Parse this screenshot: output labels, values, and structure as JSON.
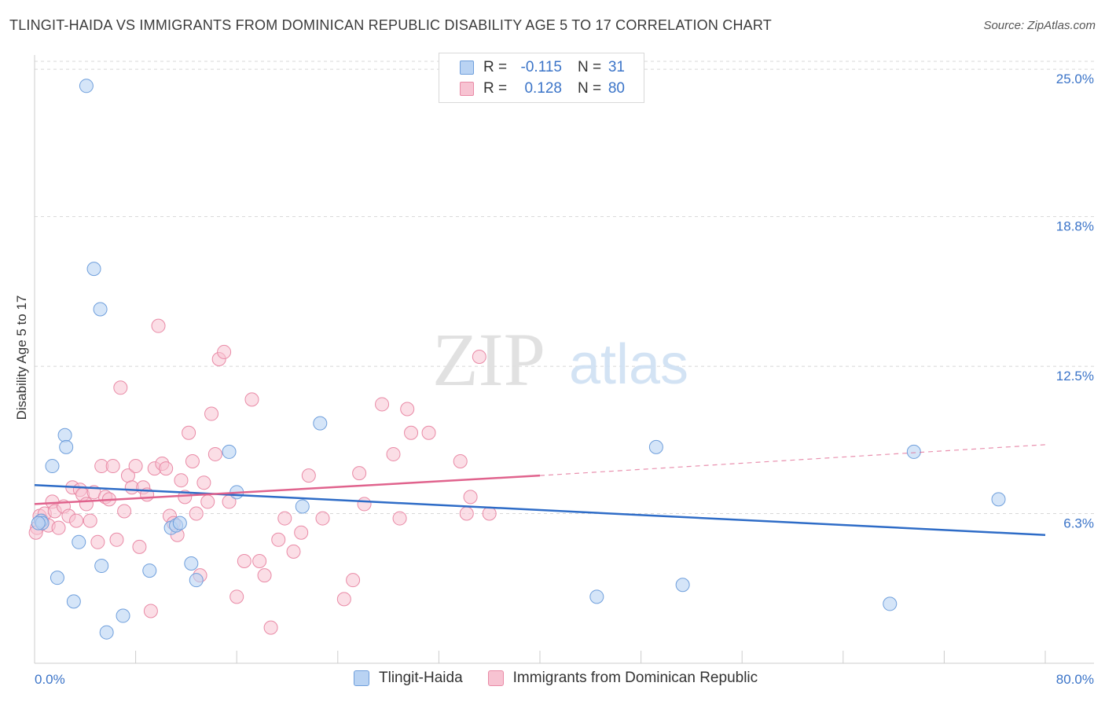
{
  "header": {
    "title": "TLINGIT-HAIDA VS IMMIGRANTS FROM DOMINICAN REPUBLIC DISABILITY AGE 5 TO 17 CORRELATION CHART",
    "source": "Source: ZipAtlas.com"
  },
  "watermark": {
    "zip": "ZIP",
    "atlas": "atlas"
  },
  "legend_top": {
    "rows": [
      {
        "r_label": "R =",
        "r_value": "-0.115",
        "n_label": "N =",
        "n_value": "31"
      },
      {
        "r_label": "R =",
        "r_value": "0.128",
        "n_label": "N =",
        "n_value": "80"
      }
    ]
  },
  "colors": {
    "blue_fill": "#b9d3f3",
    "blue_stroke": "#6f9fdc",
    "blue_line": "#2e6cc7",
    "pink_fill": "#f7c3d2",
    "pink_stroke": "#e98aa6",
    "pink_line": "#e0638d",
    "grid": "#d8d8d8",
    "tick_label": "#3b74c8"
  },
  "chart_data": {
    "type": "scatter",
    "title": "TLINGIT-HAIDA VS IMMIGRANTS FROM DOMINICAN REPUBLIC DISABILITY AGE 5 TO 17 CORRELATION CHART",
    "xlabel": "",
    "ylabel": "Disability Age 5 to 17",
    "xlim": [
      0,
      80
    ],
    "ylim": [
      0,
      25.6
    ],
    "x_tick_labels": [
      "0.0%",
      "80.0%"
    ],
    "y_ticks": [
      6.3,
      12.5,
      18.8,
      25.0
    ],
    "y_tick_labels": [
      "6.3%",
      "12.5%",
      "18.8%",
      "25.0%"
    ],
    "grid": true,
    "legend_position": "top-center",
    "series": [
      {
        "name": "Tlingit-Haida",
        "trend": {
          "x": [
            0,
            80
          ],
          "y": [
            7.5,
            5.4
          ]
        },
        "points": [
          [
            4.1,
            24.3
          ],
          [
            4.7,
            16.6
          ],
          [
            5.2,
            14.9
          ],
          [
            2.4,
            9.6
          ],
          [
            2.5,
            9.1
          ],
          [
            1.4,
            8.3
          ],
          [
            0.5,
            6.0
          ],
          [
            0.6,
            5.9
          ],
          [
            3.5,
            5.1
          ],
          [
            5.3,
            4.1
          ],
          [
            1.8,
            3.6
          ],
          [
            3.1,
            2.6
          ],
          [
            7.0,
            2.0
          ],
          [
            5.7,
            1.3
          ],
          [
            9.1,
            3.9
          ],
          [
            10.8,
            5.7
          ],
          [
            11.2,
            5.8
          ],
          [
            11.5,
            5.9
          ],
          [
            12.4,
            4.2
          ],
          [
            12.8,
            3.5
          ],
          [
            15.4,
            8.9
          ],
          [
            16.0,
            7.2
          ],
          [
            22.6,
            10.1
          ],
          [
            21.2,
            6.6
          ],
          [
            44.5,
            2.8
          ],
          [
            49.2,
            9.1
          ],
          [
            51.3,
            3.3
          ],
          [
            67.7,
            2.5
          ],
          [
            69.6,
            8.9
          ],
          [
            76.3,
            6.9
          ],
          [
            0.3,
            5.9
          ]
        ]
      },
      {
        "name": "Immigrants from Dominican Republic",
        "trend": {
          "x": [
            0,
            40
          ],
          "y": [
            6.7,
            7.9
          ]
        },
        "trend_ext": {
          "x": [
            40,
            80
          ],
          "y": [
            7.9,
            9.2
          ]
        },
        "points": [
          [
            0.2,
            5.7
          ],
          [
            0.4,
            6.2
          ],
          [
            0.6,
            6.0
          ],
          [
            0.8,
            6.3
          ],
          [
            1.1,
            5.8
          ],
          [
            1.4,
            6.8
          ],
          [
            1.6,
            6.4
          ],
          [
            1.9,
            5.7
          ],
          [
            2.3,
            6.6
          ],
          [
            2.7,
            6.2
          ],
          [
            3.0,
            7.4
          ],
          [
            3.3,
            6.0
          ],
          [
            3.6,
            7.3
          ],
          [
            3.8,
            7.1
          ],
          [
            4.1,
            6.7
          ],
          [
            4.4,
            6.0
          ],
          [
            4.7,
            7.2
          ],
          [
            5.0,
            5.1
          ],
          [
            5.3,
            8.3
          ],
          [
            5.6,
            7.0
          ],
          [
            5.9,
            6.9
          ],
          [
            6.2,
            8.3
          ],
          [
            6.5,
            5.2
          ],
          [
            6.8,
            11.6
          ],
          [
            7.1,
            6.4
          ],
          [
            7.4,
            7.9
          ],
          [
            7.7,
            7.4
          ],
          [
            8.0,
            8.3
          ],
          [
            8.3,
            4.9
          ],
          [
            8.6,
            7.4
          ],
          [
            8.9,
            7.1
          ],
          [
            9.2,
            2.2
          ],
          [
            9.5,
            8.2
          ],
          [
            9.8,
            14.2
          ],
          [
            10.1,
            8.4
          ],
          [
            10.4,
            8.2
          ],
          [
            10.7,
            6.2
          ],
          [
            11.0,
            5.9
          ],
          [
            11.3,
            5.4
          ],
          [
            11.6,
            7.7
          ],
          [
            11.9,
            7.0
          ],
          [
            12.2,
            9.7
          ],
          [
            12.5,
            8.5
          ],
          [
            12.8,
            6.3
          ],
          [
            13.1,
            3.7
          ],
          [
            13.4,
            7.6
          ],
          [
            13.7,
            6.8
          ],
          [
            14.0,
            10.5
          ],
          [
            14.3,
            8.8
          ],
          [
            14.6,
            12.8
          ],
          [
            15.0,
            13.1
          ],
          [
            15.4,
            6.8
          ],
          [
            16.0,
            2.8
          ],
          [
            16.6,
            4.3
          ],
          [
            17.2,
            11.1
          ],
          [
            17.8,
            4.3
          ],
          [
            18.2,
            3.7
          ],
          [
            18.7,
            1.5
          ],
          [
            19.3,
            5.2
          ],
          [
            19.8,
            6.1
          ],
          [
            20.5,
            4.7
          ],
          [
            21.1,
            5.5
          ],
          [
            21.7,
            7.9
          ],
          [
            22.8,
            6.1
          ],
          [
            24.5,
            2.7
          ],
          [
            25.2,
            3.5
          ],
          [
            25.7,
            8.0
          ],
          [
            26.1,
            6.7
          ],
          [
            27.5,
            10.9
          ],
          [
            28.4,
            8.8
          ],
          [
            28.9,
            6.1
          ],
          [
            29.5,
            10.7
          ],
          [
            29.8,
            9.7
          ],
          [
            31.2,
            9.7
          ],
          [
            33.7,
            8.5
          ],
          [
            34.2,
            6.3
          ],
          [
            34.5,
            7.0
          ],
          [
            35.2,
            12.9
          ],
          [
            36.0,
            6.3
          ],
          [
            0.1,
            5.5
          ]
        ]
      }
    ]
  }
}
